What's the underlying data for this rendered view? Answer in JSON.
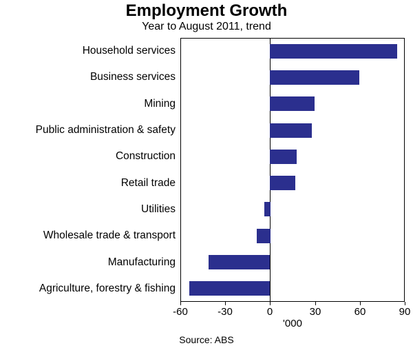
{
  "chart": {
    "title": "Employment Growth",
    "subtitle": "Year to August 2011, trend",
    "unit_label": "'000",
    "source": "Source: ABS",
    "bar_color": "#2b2f8e",
    "axis_color": "#000000"
  },
  "chart_data": {
    "type": "bar",
    "orientation": "horizontal",
    "title": "Employment Growth",
    "subtitle": "Year to August 2011, trend",
    "categories": [
      "Household services",
      "Business services",
      "Mining",
      "Public administration & safety",
      "Construction",
      "Retail trade",
      "Utilities",
      "Wholesale trade & transport",
      "Manufacturing",
      "Agriculture, forestry & fishing"
    ],
    "values": [
      85,
      60,
      30,
      28,
      18,
      17,
      -4,
      -9,
      -41,
      -54
    ],
    "xlabel": "'000",
    "xlim": [
      -60,
      90
    ],
    "xticks": [
      -60,
      -30,
      0,
      30,
      60,
      90
    ],
    "grid": false,
    "legend": "none",
    "source": "Source: ABS"
  }
}
